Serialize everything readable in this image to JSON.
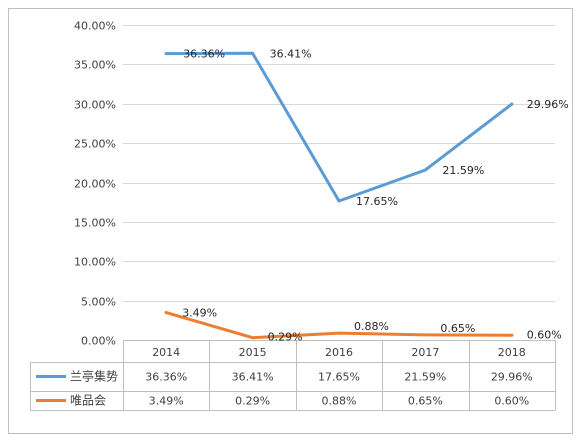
{
  "colors": {
    "series": [
      "#5B9BD5",
      "#ED7D31"
    ],
    "grid": "#D9D9D9",
    "border": "#BFBFBF",
    "text": "#404040"
  },
  "chart_data": {
    "type": "line",
    "title": "",
    "xlabel": "",
    "ylabel": "",
    "categories": [
      "2014",
      "2015",
      "2016",
      "2017",
      "2018"
    ],
    "ylim": [
      0,
      40
    ],
    "yticks": [
      "0.00%",
      "5.00%",
      "10.00%",
      "15.00%",
      "20.00%",
      "25.00%",
      "30.00%",
      "35.00%",
      "40.00%"
    ],
    "grid": true,
    "legend": "data-table",
    "series": [
      {
        "name": "兰亭集势",
        "values": [
          36.36,
          36.41,
          17.65,
          21.59,
          29.96
        ],
        "labels": [
          "36.36%",
          "36.41%",
          "17.65%",
          "21.59%",
          "29.96%"
        ]
      },
      {
        "name": "唯品会",
        "values": [
          3.49,
          0.29,
          0.88,
          0.65,
          0.6
        ],
        "labels": [
          "3.49%",
          "0.29%",
          "0.88%",
          "0.65%",
          "0.60%"
        ]
      }
    ]
  }
}
